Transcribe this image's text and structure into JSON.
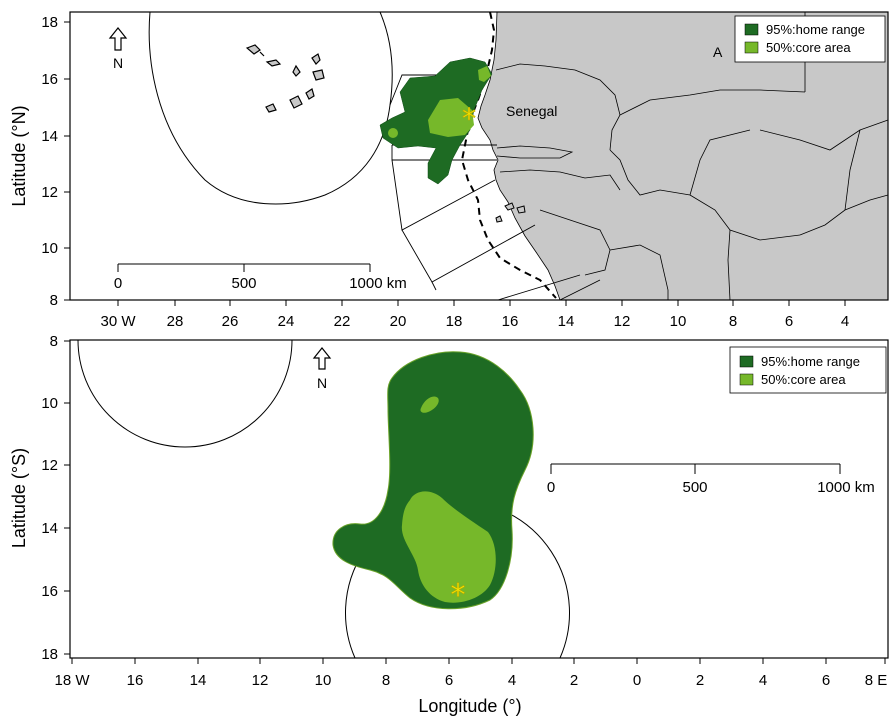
{
  "top_panel": {
    "ylabel": "Latitude (°N)",
    "y_ticks": [
      "18",
      "16",
      "14",
      "12",
      "10",
      "8"
    ],
    "x_ticks": [
      "30 W",
      "28",
      "26",
      "24",
      "22",
      "20",
      "18",
      "16",
      "14",
      "12",
      "10",
      "8",
      "6",
      "4"
    ],
    "legend": [
      {
        "label": "95%:home range",
        "color": "#1e6b23"
      },
      {
        "label": "50%:core area",
        "color": "#76b82a"
      }
    ],
    "country_label": "Senegal",
    "partial_label": "A",
    "north_label": "N",
    "scalebar": {
      "labels": [
        "0",
        "500",
        "1000 km"
      ]
    }
  },
  "bottom_panel": {
    "ylabel": "Latitude (°S)",
    "xlabel": "Longitude (°)",
    "y_ticks": [
      "8",
      "10",
      "12",
      "14",
      "16",
      "18"
    ],
    "x_ticks": [
      "18 W",
      "16",
      "14",
      "12",
      "10",
      "8",
      "6",
      "4",
      "2",
      "0",
      "2",
      "4",
      "6",
      "8 E"
    ],
    "legend": [
      {
        "label": "95%:home range",
        "color": "#1e6b23"
      },
      {
        "label": "50%:core area",
        "color": "#76b82a"
      }
    ],
    "north_label": "N",
    "scalebar": {
      "labels": [
        "0",
        "500",
        "1000 km"
      ]
    }
  },
  "colors": {
    "land": "#c8c8c8",
    "home_range": "#1e6b23",
    "core_area": "#76b82a",
    "marker": "#f5e600"
  }
}
